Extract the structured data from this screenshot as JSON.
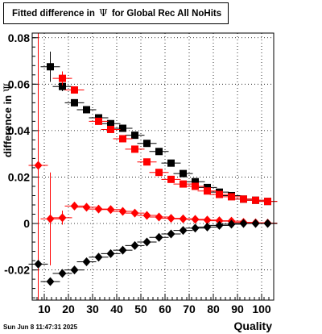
{
  "title": {
    "prefix": "Fitted difference in",
    "symbol": "Ψ",
    "suffix": "for Global Rec All NoHits"
  },
  "timestamp": "Sun Jun  8 11:47:31 2025",
  "colors": {
    "series_black": "#000000",
    "series_red": "#ff0000"
  },
  "chart_data": {
    "type": "scatter",
    "title": "Fitted difference in Ψ for Global Rec All NoHits",
    "xlabel": "Quality",
    "ylabel_prefix": "difference in",
    "ylabel_symbol": "Ψ",
    "xlim": [
      5,
      105
    ],
    "ylim": [
      -0.033,
      0.082
    ],
    "grid": true,
    "x_ticks": [
      10,
      20,
      30,
      40,
      50,
      60,
      70,
      80,
      90,
      100
    ],
    "x_tick_labels": [
      "10",
      "20",
      "30",
      "40",
      "50",
      "60",
      "70",
      "80",
      "90",
      "100"
    ],
    "y_ticks": [
      -0.02,
      0,
      0.02,
      0.04,
      0.06,
      0.08
    ],
    "y_tick_labels": [
      "-0.02",
      "0",
      "0.02",
      "0.04",
      "0.06",
      "0.08"
    ],
    "series": [
      {
        "marker": "square",
        "color": "#000000",
        "x": [
          12.5,
          17.5,
          22.5,
          27.5,
          32.5,
          37.5,
          42.5,
          47.5,
          52.5,
          57.5,
          62.5,
          67.5,
          72.5,
          77.5,
          82.5,
          87.5,
          92.5,
          97.5,
          102.5
        ],
        "y": [
          0.0675,
          0.059,
          0.052,
          0.049,
          0.0455,
          0.043,
          0.041,
          0.038,
          0.0345,
          0.031,
          0.026,
          0.0215,
          0.018,
          0.0155,
          0.0135,
          0.012,
          0.0105,
          0.01,
          0.0095
        ],
        "err": [
          0.0065,
          0.002,
          0.0015,
          0.001,
          0.0008,
          0.0007,
          0.0006,
          0.0006,
          0.0005,
          0.0005,
          0.0005,
          0.0005,
          0.0004,
          0.0004,
          0.0004,
          0.0004,
          0.0004,
          0.0004,
          0.0004
        ]
      },
      {
        "marker": "square",
        "color": "#ff0000",
        "x": [
          17.5,
          22.5,
          32.5,
          37.5,
          42.5,
          47.5,
          52.5,
          57.5,
          62.5,
          67.5,
          72.5,
          77.5,
          82.5,
          87.5,
          92.5,
          97.5,
          102.5
        ],
        "y": [
          0.0625,
          0.0575,
          0.044,
          0.0405,
          0.0365,
          0.032,
          0.0265,
          0.022,
          0.019,
          0.017,
          0.016,
          0.014,
          0.0125,
          0.0115,
          0.0105,
          0.01,
          0.0095
        ],
        "err": [
          0.003,
          0.0015,
          0.0008,
          0.0007,
          0.0006,
          0.0006,
          0.0005,
          0.0005,
          0.0005,
          0.0005,
          0.0004,
          0.0004,
          0.0004,
          0.0004,
          0.0004,
          0.0004,
          0.0004
        ]
      },
      {
        "marker": "diamond",
        "color": "#ff0000",
        "x": [
          7.5,
          12.5,
          17.5,
          22.5,
          27.5,
          32.5,
          37.5,
          42.5,
          47.5,
          52.5,
          57.5,
          62.5,
          67.5,
          72.5,
          77.5,
          82.5,
          87.5,
          92.5,
          97.5,
          102.5
        ],
        "y": [
          0.025,
          0.002,
          0.0025,
          0.0075,
          0.007,
          0.0062,
          0.006,
          0.0052,
          0.0045,
          0.0035,
          0.0028,
          0.0022,
          0.002,
          0.0018,
          0.0015,
          0.0012,
          0.001,
          0.0005,
          0.0003,
          0.0002
        ],
        "err": [
          0.07,
          0.02,
          0.003,
          0.001,
          0.0008,
          0.0006,
          0.0005,
          0.0005,
          0.0004,
          0.0004,
          0.0004,
          0.0004,
          0.0003,
          0.0003,
          0.0003,
          0.0003,
          0.0003,
          0.0003,
          0.0003,
          0.0003
        ]
      },
      {
        "marker": "diamond",
        "color": "#000000",
        "x": [
          7.5,
          12.5,
          17.5,
          22.5,
          27.5,
          32.5,
          37.5,
          42.5,
          47.5,
          52.5,
          57.5,
          62.5,
          67.5,
          72.5,
          77.5,
          82.5,
          87.5,
          92.5,
          97.5,
          102.5
        ],
        "y": [
          -0.0175,
          -0.025,
          -0.0215,
          -0.02,
          -0.0165,
          -0.0145,
          -0.013,
          -0.0115,
          -0.0095,
          -0.008,
          -0.006,
          -0.0045,
          -0.003,
          -0.002,
          -0.0015,
          -0.0008,
          -0.0003,
          0.0,
          0.0,
          0.0
        ],
        "err": [
          0.0015,
          0.001,
          0.0008,
          0.0006,
          0.0005,
          0.0004,
          0.0004,
          0.0004,
          0.0003,
          0.0003,
          0.0003,
          0.0003,
          0.0003,
          0.0003,
          0.0003,
          0.0003,
          0.0003,
          0.0003,
          0.0003,
          0.0003
        ]
      }
    ]
  }
}
